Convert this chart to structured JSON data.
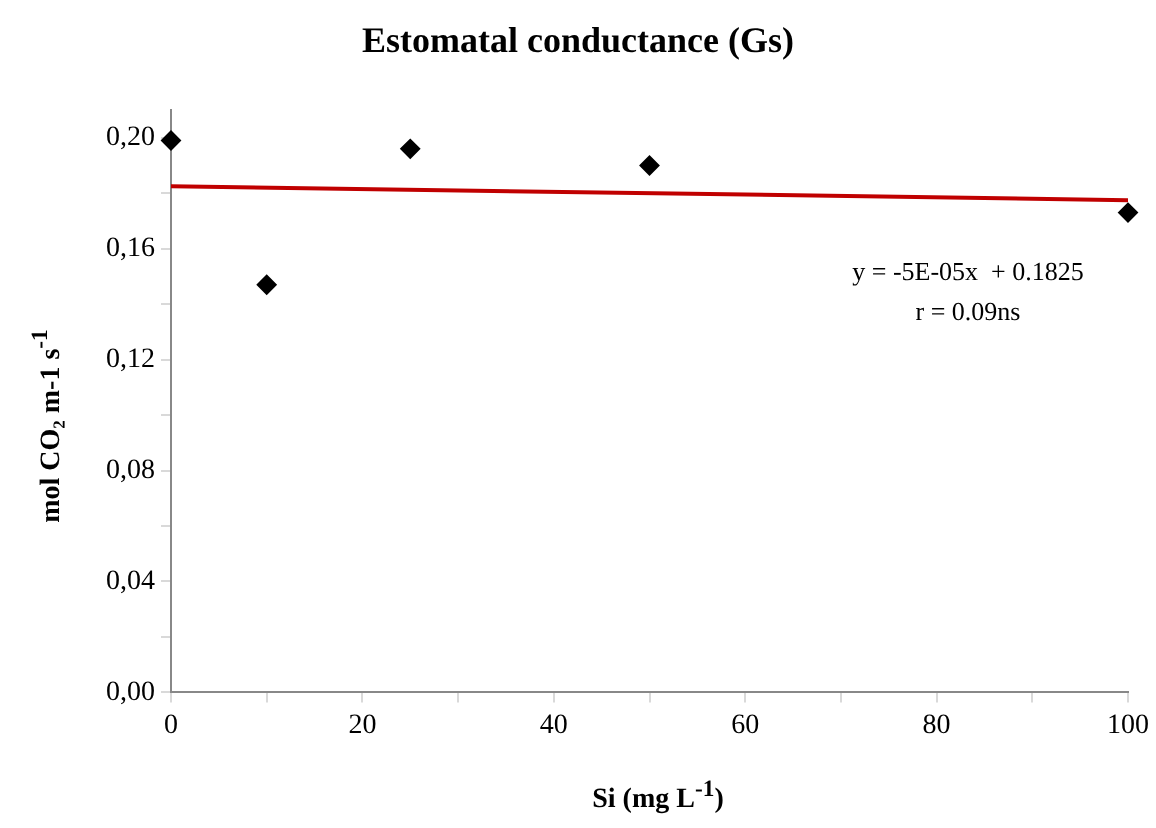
{
  "chart_data": {
    "type": "scatter",
    "title": "Estomatal conductance  (Gs)",
    "xlabel": "Si (mg L$^{-1}$)",
    "ylabel": "mol CO₂ m-1 s$^{-1}$",
    "series": [
      {
        "color": "#000000",
        "x": [
          0,
          10,
          25,
          50,
          100
        ],
        "values": [
          0.199,
          0.147,
          0.196,
          0.19,
          0.173
        ]
      },
      {
        "type": "line",
        "marker": "none",
        "color": "#c00000",
        "x": [
          0,
          100
        ],
        "values": [
          0.1825,
          0.1775
        ]
      }
    ],
    "annotations": [
      "y = -5E-05x  + 0.1825",
      "r = 0.09ns"
    ],
    "xlim": [
      0,
      100
    ],
    "xticks": [
      0,
      {
        "value": 10,
        "label": null
      },
      20,
      {
        "value": 30,
        "label": null
      },
      40,
      {
        "value": 50,
        "label": null
      },
      60,
      {
        "value": 70,
        "label": null
      },
      80,
      {
        "value": 90,
        "label": null
      },
      100
    ],
    "ylim": [
      0,
      0.21
    ],
    "yticks": [
      {
        "value": 0,
        "label": "0,00"
      },
      {
        "value": 0.02,
        "label": null
      },
      {
        "value": 0.04,
        "label": "0,04"
      },
      {
        "value": 0.06,
        "label": null
      },
      {
        "value": 0.08,
        "label": "0,08"
      },
      {
        "value": 0.1,
        "label": null
      },
      {
        "value": 0.12,
        "label": "0,12"
      },
      {
        "value": 0.14,
        "label": null
      },
      {
        "value": 0.16,
        "label": "0,16"
      },
      {
        "value": 0.18,
        "label": null
      },
      {
        "value": 0.2,
        "label": "0,20"
      }
    ],
    "grid": false,
    "legend": false,
    "marker": "diamond"
  }
}
